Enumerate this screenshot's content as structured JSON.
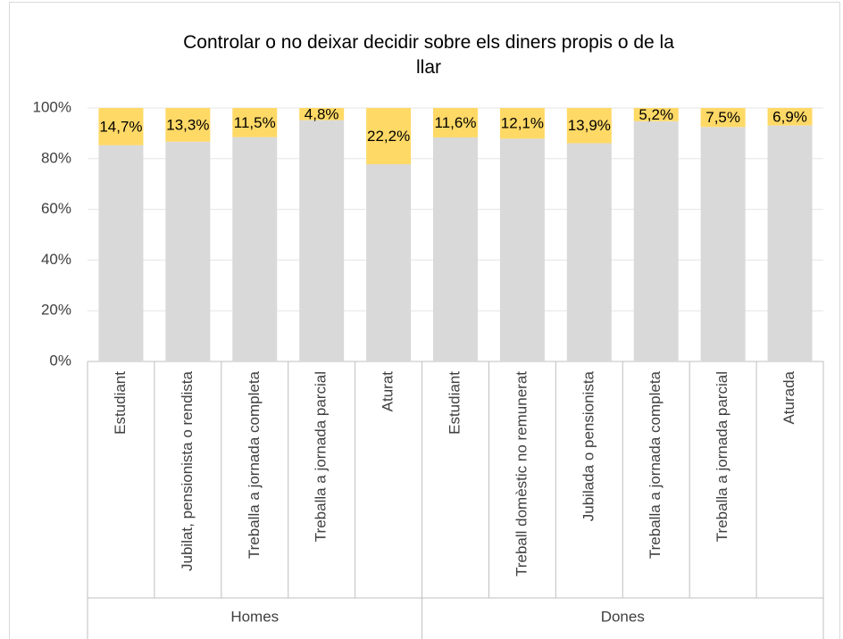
{
  "chart_data": {
    "type": "stacked_bar",
    "title": "Controlar o no deixar decidir sobre els diners propis o de la llar",
    "groups": [
      {
        "name": "Homes",
        "categories": [
          "Estudiant",
          "Jubilat, pensionista o rendista",
          "Treballa a jornada completa",
          "Treballa a jornada parcial",
          "Aturat"
        ]
      },
      {
        "name": "Dones",
        "categories": [
          "Estudiant",
          "Treball domèstic no remunerat",
          "Jubilada o pensionista",
          "Treballa a jornada completa",
          "Treballa a jornada parcial",
          "Aturada"
        ]
      }
    ],
    "series": [
      {
        "color": "#d9d9d9",
        "values": [
          85.3,
          86.7,
          88.5,
          95.2,
          77.8,
          88.4,
          87.9,
          86.1,
          94.8,
          92.5,
          93.1
        ]
      },
      {
        "color": "#ffd966",
        "values": [
          14.7,
          13.3,
          11.5,
          4.8,
          22.2,
          11.6,
          12.1,
          13.9,
          5.2,
          7.5,
          6.9
        ],
        "value_labels": [
          "14,7%",
          "13,3%",
          "11,5%",
          "4,8%",
          "22,2%",
          "11,6%",
          "12,1%",
          "13,9%",
          "5,2%",
          "7,5%",
          "6,9%"
        ]
      }
    ],
    "ylim": [
      0,
      100
    ],
    "yticks": [
      {
        "value": 0,
        "label": "0%"
      },
      {
        "value": 20,
        "label": "20%"
      },
      {
        "value": 40,
        "label": "40%"
      },
      {
        "value": 60,
        "label": "60%"
      },
      {
        "value": 80,
        "label": "80%"
      },
      {
        "value": 100,
        "label": "100%"
      }
    ],
    "grid": true
  }
}
